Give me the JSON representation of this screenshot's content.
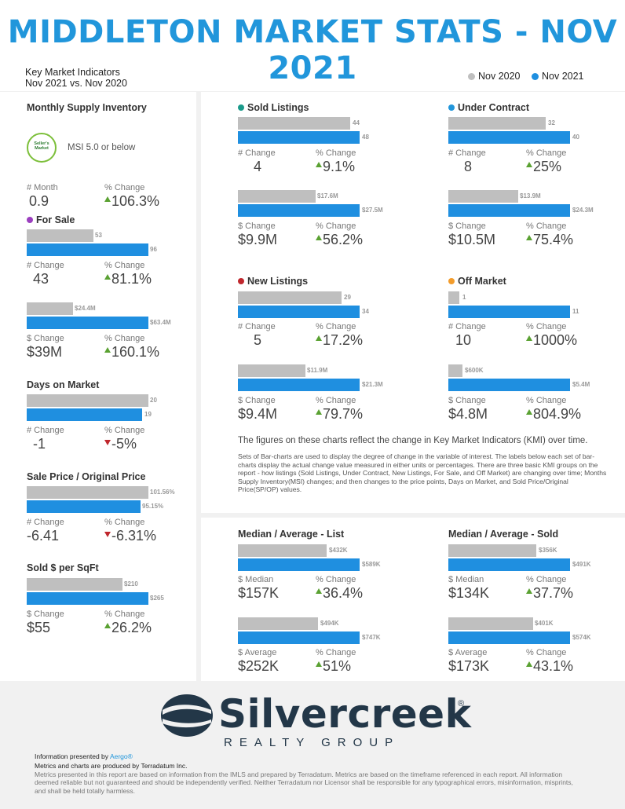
{
  "title": "MIDDLETON MARKET STATS - NOV 2021",
  "header": {
    "kmi_line1": "Key Market Indicators",
    "kmi_line2": "Nov 2021 vs. Nov 2020"
  },
  "legend": {
    "prev": "Nov 2020",
    "curr": "Nov 2021"
  },
  "colors": {
    "title": "#2196db",
    "prev_bar": "#bfbfbf",
    "curr_bar": "#1f8fe0",
    "up": "#5aa132",
    "down": "#c0272d"
  },
  "msi": {
    "title": "Monthly Supply Inventory",
    "badge": "Seller's Market",
    "text": "MSI 5.0 or below",
    "l1": "# Month",
    "v1": "0.9",
    "l2": "% Change",
    "v2": "106.3%"
  },
  "for_sale": {
    "title": "For Sale",
    "dot": "#9b3fbf",
    "b1": [
      "53",
      "96"
    ],
    "l1": "# Change",
    "v1": "43",
    "l2": "% Change",
    "v2": "81.1%",
    "b2": [
      "$24.4M",
      "$63.4M"
    ],
    "l3": "$ Change",
    "v3": "$39M",
    "l4": "% Change",
    "v4": "160.1%"
  },
  "dom": {
    "title": "Days on Market",
    "b1": [
      "20",
      "19"
    ],
    "l1": "# Change",
    "v1": "-1",
    "l2": "% Change",
    "v2": "-5%"
  },
  "sp_op": {
    "title": "Sale Price / Original Price",
    "b1": [
      "101.56%",
      "95.15%"
    ],
    "l1": "# Change",
    "v1": "-6.41",
    "l2": "% Change",
    "v2": "-6.31%"
  },
  "sqft": {
    "title": "Sold $ per SqFt",
    "b1": [
      "$210",
      "$265"
    ],
    "l1": "$ Change",
    "v1": "$55",
    "l2": "% Change",
    "v2": "26.2%"
  },
  "sold": {
    "title": "Sold Listings",
    "dot": "#1a9a8a",
    "b1": [
      "44",
      "48"
    ],
    "l1": "# Change",
    "v1": "4",
    "l2": "% Change",
    "v2": "9.1%",
    "b2": [
      "$17.6M",
      "$27.5M"
    ],
    "l3": "$ Change",
    "v3": "$9.9M",
    "l4": "% Change",
    "v4": "56.2%"
  },
  "uc": {
    "title": "Under Contract",
    "dot": "#2196db",
    "b1": [
      "32",
      "40"
    ],
    "l1": "# Change",
    "v1": "8",
    "l2": "% Change",
    "v2": "25%",
    "b2": [
      "$13.9M",
      "$24.3M"
    ],
    "l3": "$ Change",
    "v3": "$10.5M",
    "l4": "% Change",
    "v4": "75.4%"
  },
  "nl": {
    "title": "New Listings",
    "dot": "#c0272d",
    "b1": [
      "29",
      "34"
    ],
    "l1": "# Change",
    "v1": "5",
    "l2": "% Change",
    "v2": "17.2%",
    "b2": [
      "$11.9M",
      "$21.3M"
    ],
    "l3": "$ Change",
    "v3": "$9.4M",
    "l4": "% Change",
    "v4": "79.7%"
  },
  "om": {
    "title": "Off Market",
    "dot": "#f39c2b",
    "b1": [
      "1",
      "11"
    ],
    "l1": "# Change",
    "v1": "10",
    "l2": "% Change",
    "v2": "1000%",
    "b2": [
      "$600K",
      "$5.4M"
    ],
    "l3": "$ Change",
    "v3": "$4.8M",
    "l4": "% Change",
    "v4": "804.9%"
  },
  "notes": {
    "line1": "The figures on these charts reflect the change in Key Market Indicators (KMI) over time.",
    "para": "Sets of Bar-charts are used to display the degree of change in the variable of interest. The labels below each set of bar-charts display the actual change value measured in either units or percentages. There are three basic KMI groups on the report - how listings (Sold Listings, Under Contract, New Listings, For Sale, and Off Market) are changing over time; Months Supply Inventory(MSI) changes; and then changes to the price points, Days on Market, and Sold Price/Original Price(SP/OP) values."
  },
  "list": {
    "title": "Median / Average - List",
    "b1": [
      "$432K",
      "$589K"
    ],
    "l1": "$ Median",
    "v1": "$157K",
    "l2": "% Change",
    "v2": "36.4%",
    "b2": [
      "$494K",
      "$747K"
    ],
    "l3": "$ Average",
    "v3": "$252K",
    "l4": "% Change",
    "v4": "51%"
  },
  "soldp": {
    "title": "Median / Average - Sold",
    "b1": [
      "$356K",
      "$491K"
    ],
    "l1": "$ Median",
    "v1": "$134K",
    "l2": "% Change",
    "v2": "37.7%",
    "b2": [
      "$401K",
      "$574K"
    ],
    "l3": "$ Average",
    "v3": "$173K",
    "l4": "% Change",
    "v4": "43.1%"
  },
  "footer": {
    "logo": "Silvercreek",
    "reg": "®",
    "sub": "REALTY GROUP",
    "presented": "Information presented by",
    "presenter": "Aergo®",
    "metrics": "Metrics and charts are produced by Terradatum Inc.",
    "disclaimer": "Metrics presented in this report are based on information from the IMLS and prepared by Terradatum. Metrics are based on the timeframe referenced in each report. All information deemed reliable but not guaranteed and should be independently verified. Neither Terradatum nor Licensor shall be responsible for any typographical errors, misinformation, misprints, and shall be held totally harmless."
  }
}
